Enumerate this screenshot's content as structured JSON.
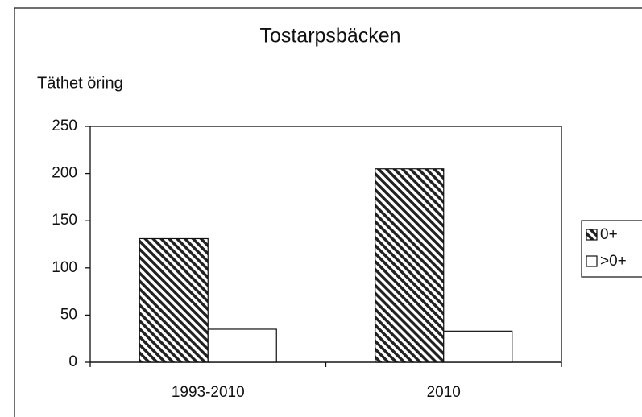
{
  "chart_data": {
    "type": "bar",
    "title": "Tostarpsbäcken",
    "y_label": "Täthet öring",
    "categories": [
      "1993-2010",
      "2010"
    ],
    "series": [
      {
        "name": "0+",
        "color": "#222222",
        "hatch": true,
        "values": [
          131,
          205
        ]
      },
      {
        "name": ">0+",
        "color": "#ffffff",
        "hatch": false,
        "values": [
          35,
          33
        ]
      }
    ],
    "ylim": [
      0,
      250
    ],
    "yticks": [
      0,
      50,
      100,
      150,
      200,
      250
    ],
    "grid": false,
    "legend": "right"
  }
}
